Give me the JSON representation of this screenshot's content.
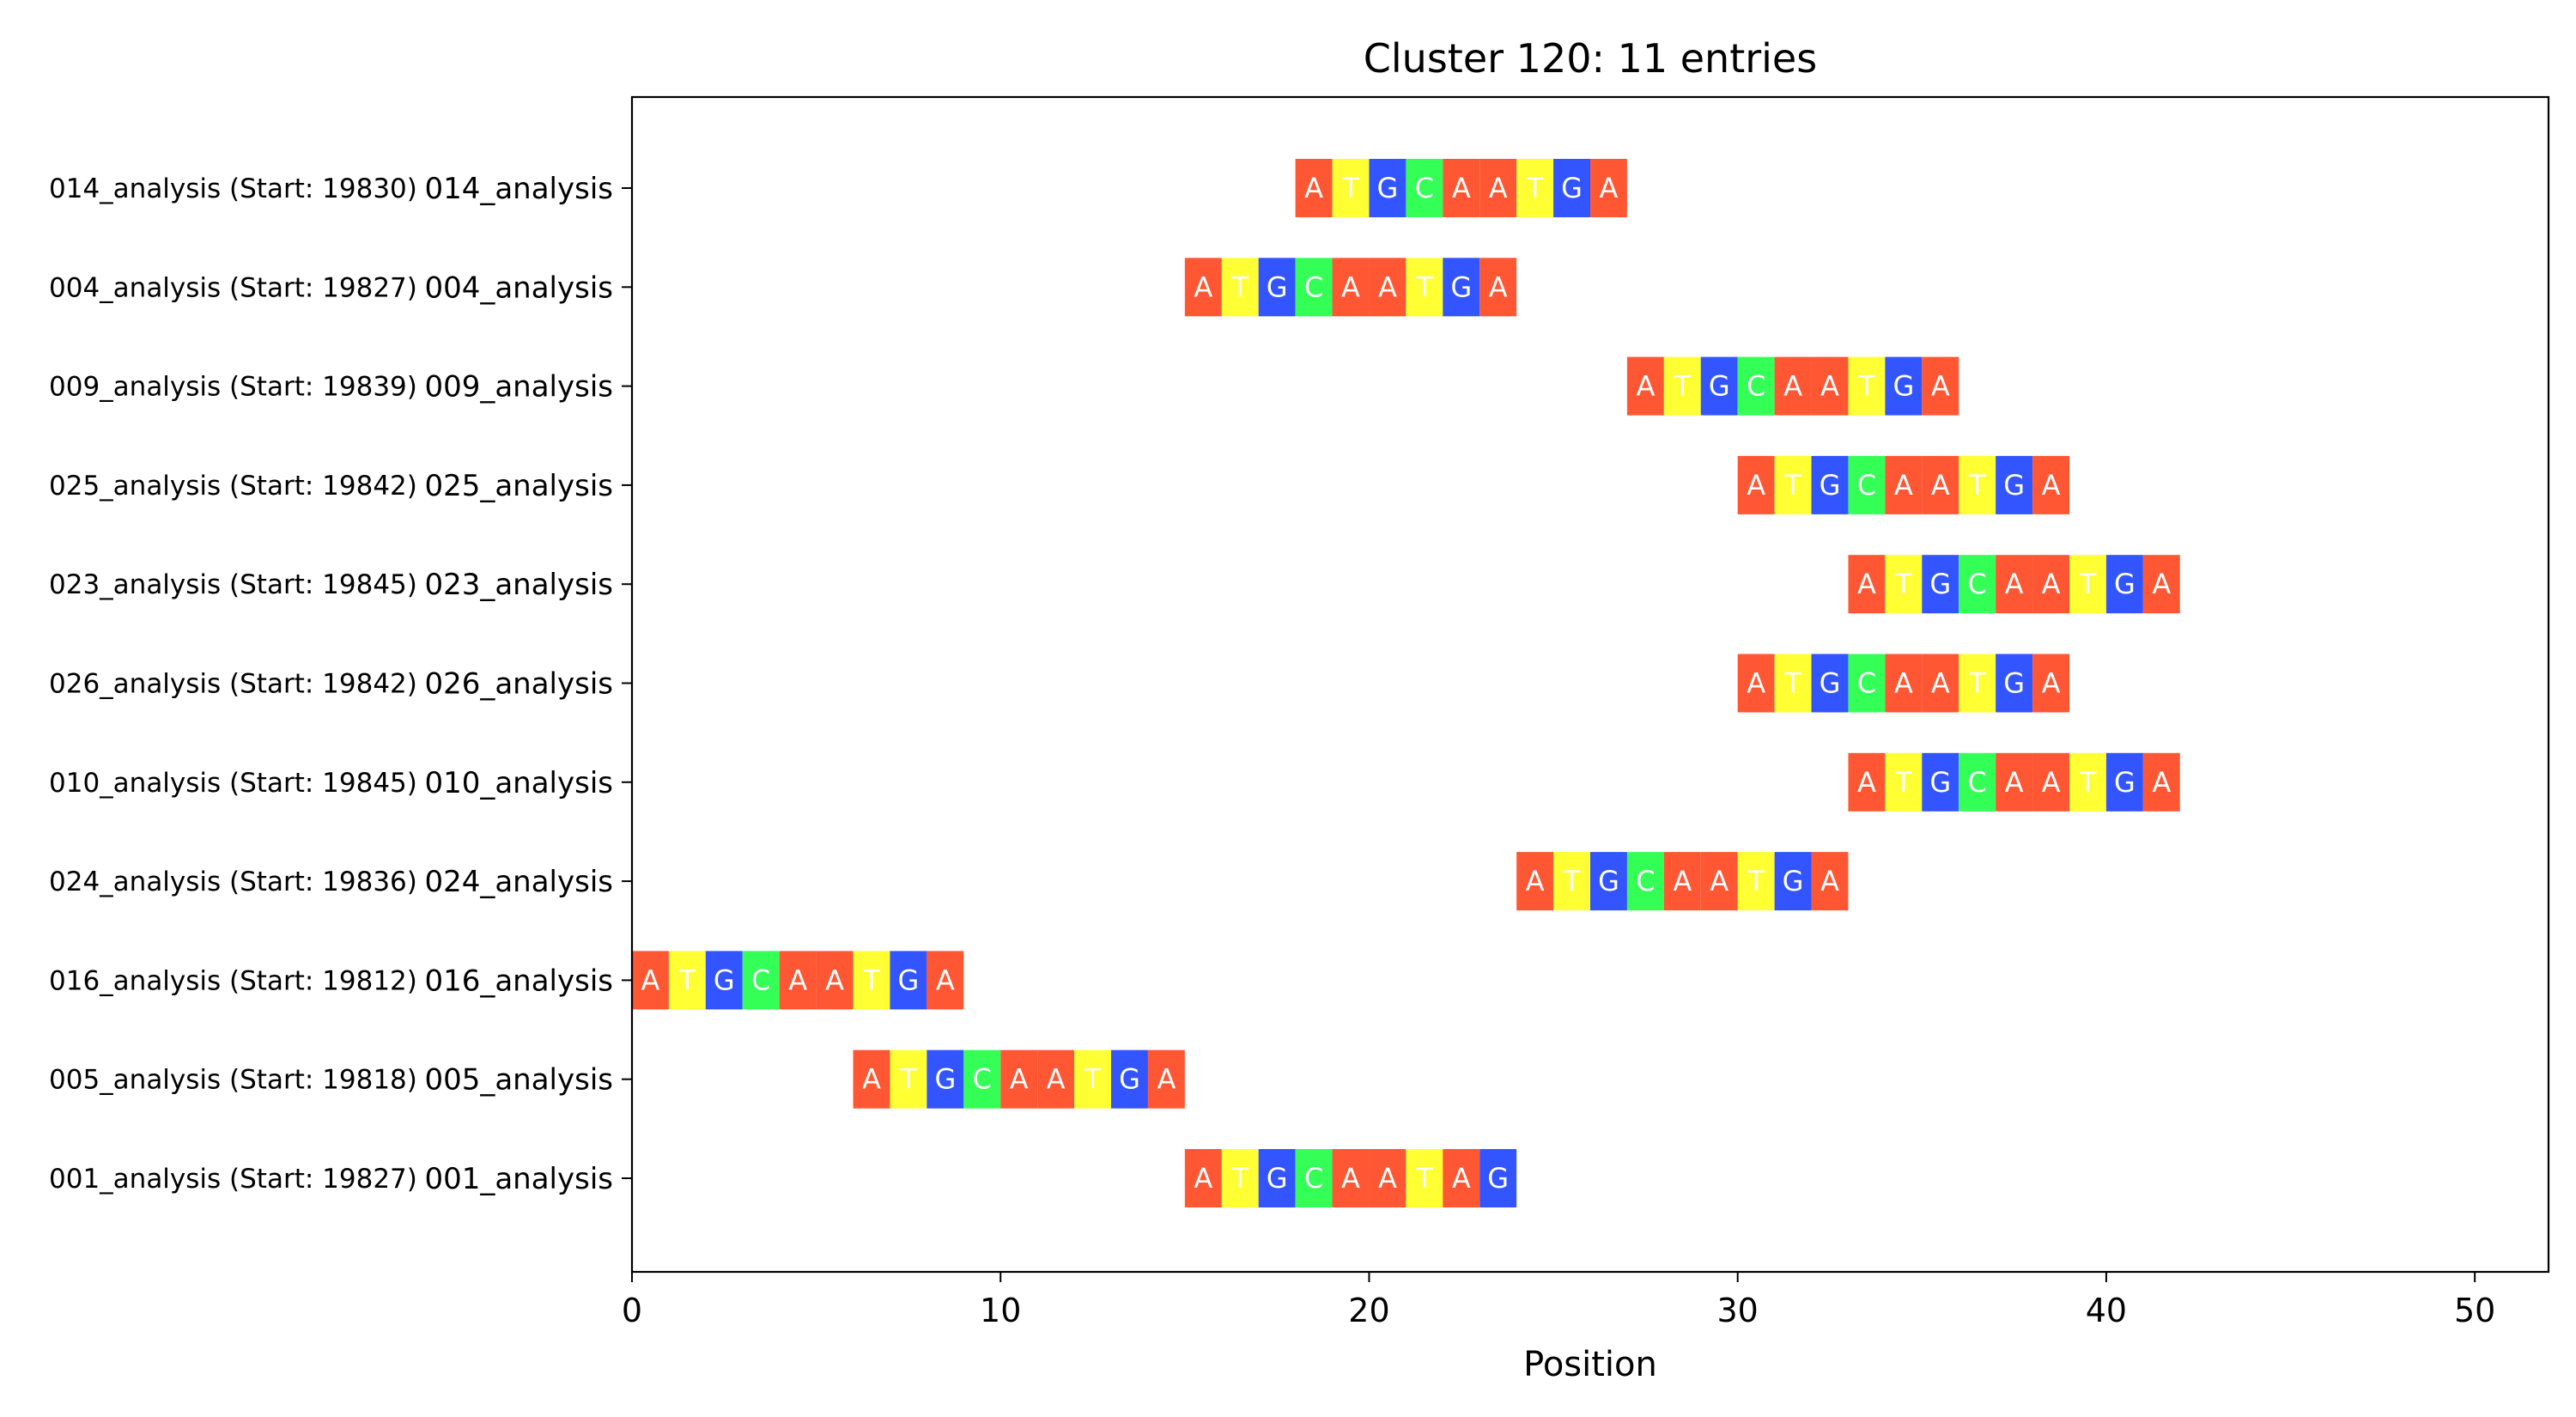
{
  "chart_data": {
    "type": "sequence-alignment",
    "title": "Cluster 120: 11 entries",
    "xlabel": "Position",
    "ylabel": "",
    "xlim": [
      0,
      52
    ],
    "xticks": [
      0,
      10,
      20,
      30,
      40,
      50
    ],
    "grid": false,
    "base_colors": {
      "A": "#ff5733",
      "T": "#ffff33",
      "G": "#3355ff",
      "C": "#33ff57"
    },
    "rows": [
      {
        "label": "014_analysis",
        "side_label": "014_analysis (Start: 19830)",
        "start": 18,
        "sequence": "ATGCAATGA"
      },
      {
        "label": "004_analysis",
        "side_label": "004_analysis (Start: 19827)",
        "start": 15,
        "sequence": "ATGCAATGA"
      },
      {
        "label": "009_analysis",
        "side_label": "009_analysis (Start: 19839)",
        "start": 27,
        "sequence": "ATGCAATGA"
      },
      {
        "label": "025_analysis",
        "side_label": "025_analysis (Start: 19842)",
        "start": 30,
        "sequence": "ATGCAATGA"
      },
      {
        "label": "023_analysis",
        "side_label": "023_analysis (Start: 19845)",
        "start": 33,
        "sequence": "ATGCAATGA"
      },
      {
        "label": "026_analysis",
        "side_label": "026_analysis (Start: 19842)",
        "start": 30,
        "sequence": "ATGCAATGA"
      },
      {
        "label": "010_analysis",
        "side_label": "010_analysis (Start: 19845)",
        "start": 33,
        "sequence": "ATGCAATGA"
      },
      {
        "label": "024_analysis",
        "side_label": "024_analysis (Start: 19836)",
        "start": 24,
        "sequence": "ATGCAATGA"
      },
      {
        "label": "016_analysis",
        "side_label": "016_analysis (Start: 19812)",
        "start": 0,
        "sequence": "ATGCAATGA"
      },
      {
        "label": "005_analysis",
        "side_label": "005_analysis (Start: 19818)",
        "start": 6,
        "sequence": "ATGCAATGA"
      },
      {
        "label": "001_analysis",
        "side_label": "001_analysis (Start: 19827)",
        "start": 15,
        "sequence": "ATGCAATAG"
      }
    ]
  }
}
